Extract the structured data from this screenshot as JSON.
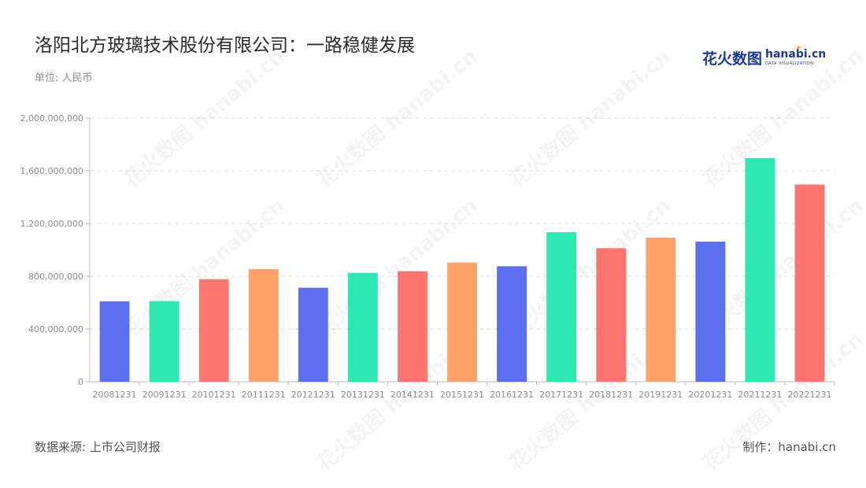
{
  "header": {
    "title": "洛阳北方玻璃技术股份有限公司：一路稳健发展",
    "unit": "单位: 人民币"
  },
  "logo": {
    "cn": "花火数图",
    "en": "hanabi.cn",
    "sub": "DATA VISUALIZATION"
  },
  "footer": {
    "source": "数据来源: 上市公司财报",
    "maker": "制作：hanabi.cn"
  },
  "watermark": "花火数图 hanabi.cn",
  "colors": {
    "palette": [
      "#5b6ff0",
      "#2de8b0",
      "#ff7670",
      "#ffa26b"
    ],
    "grid": "#dddddd",
    "axis": "#bbbbbb"
  },
  "chart_data": {
    "type": "bar",
    "categories": [
      "20081231",
      "20091231",
      "20101231",
      "20111231",
      "20121231",
      "20131231",
      "20141231",
      "20151231",
      "20161231",
      "20171231",
      "20181231",
      "20191231",
      "20201231",
      "20211231",
      "20221231"
    ],
    "values": [
      610000000,
      612000000,
      778000000,
      855000000,
      713000000,
      826000000,
      838000000,
      904000000,
      876000000,
      1134000000,
      1013000000,
      1093000000,
      1063000000,
      1697000000,
      1496000000
    ],
    "color_index": [
      0,
      1,
      2,
      3,
      0,
      1,
      2,
      3,
      0,
      1,
      2,
      3,
      0,
      1,
      2
    ],
    "ylim": [
      0,
      2000000000
    ],
    "yticks": [
      0,
      400000000,
      800000000,
      1200000000,
      1600000000,
      2000000000
    ],
    "ytick_labels": [
      "0",
      "400,000,000",
      "800,000,000",
      "1,200,000,000",
      "1,600,000,000",
      "2,000,000,000"
    ],
    "grid": true,
    "legend": "none"
  }
}
